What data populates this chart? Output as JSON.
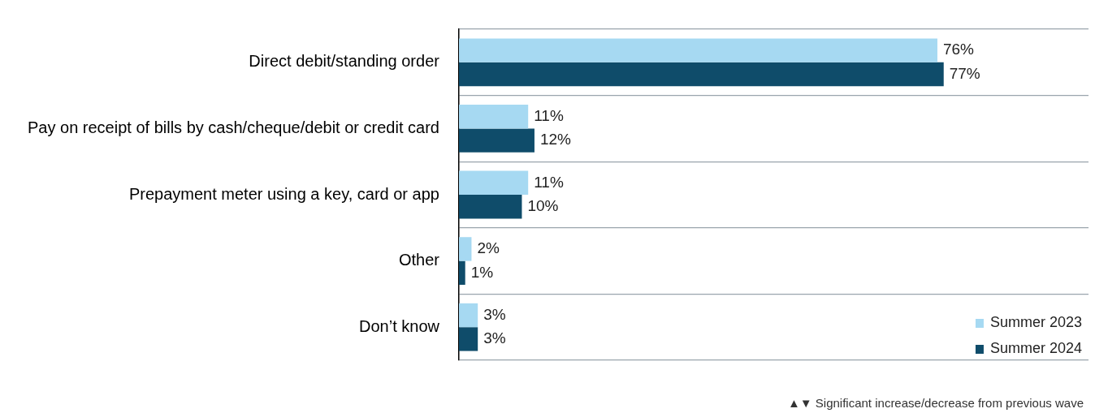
{
  "chart_data": {
    "type": "bar",
    "orientation": "horizontal",
    "categories": [
      "Direct debit/standing order",
      "Pay on receipt of bills by cash/cheque/debit or credit card",
      "Prepayment meter using a key, card or app",
      "Other",
      "Don’t know"
    ],
    "series": [
      {
        "name": "Summer 2023",
        "color": "#a6d9f2",
        "values": [
          76,
          11,
          11,
          2,
          3
        ],
        "value_labels": [
          "76%",
          "11%",
          "11%",
          "2%",
          "3%"
        ]
      },
      {
        "name": "Summer 2024",
        "color": "#0f4c6a",
        "values": [
          77,
          12,
          10,
          1,
          3
        ],
        "value_labels": [
          "77%",
          "12%",
          "10%",
          "1%",
          "3%"
        ]
      }
    ],
    "xlim": [
      0,
      100
    ],
    "tick_labels": "y",
    "grid": "y",
    "legend": "bottom right",
    "annotations": [
      "▲▼ Significant increase/decrease from previous wave"
    ]
  }
}
